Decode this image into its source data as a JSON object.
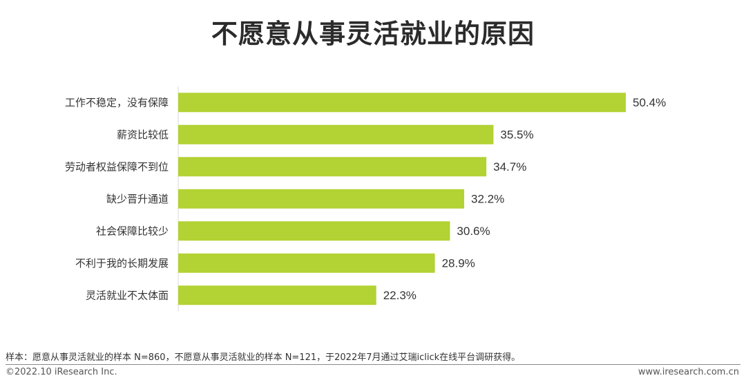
{
  "title": "不愿意从事灵活就业的原因",
  "chart_data": {
    "type": "bar",
    "orientation": "horizontal",
    "categories": [
      "工作不稳定，没有保障",
      "薪资比较低",
      "劳动者权益保障不到位",
      "缺少晋升通道",
      "社会保障比较少",
      "不利于我的长期发展",
      "灵活就业不太体面"
    ],
    "values": [
      50.4,
      35.5,
      34.7,
      32.2,
      30.6,
      28.9,
      22.3
    ],
    "value_labels": [
      "50.4%",
      "35.5%",
      "34.7%",
      "32.2%",
      "30.6%",
      "28.9%",
      "22.3%"
    ],
    "unit": "%",
    "xlim": [
      0,
      56
    ],
    "bar_color": "#b3d234",
    "grid": false,
    "legend": "none"
  },
  "note": "样本：愿意从事灵活就业的样本 N=860，不愿意从事灵活就业的样本 N=121，于2022年7月通过艾瑞iclick在线平台调研获得。",
  "footer": {
    "copyright": "©2022.10 iResearch Inc.",
    "website": "www.iresearch.com.cn"
  }
}
